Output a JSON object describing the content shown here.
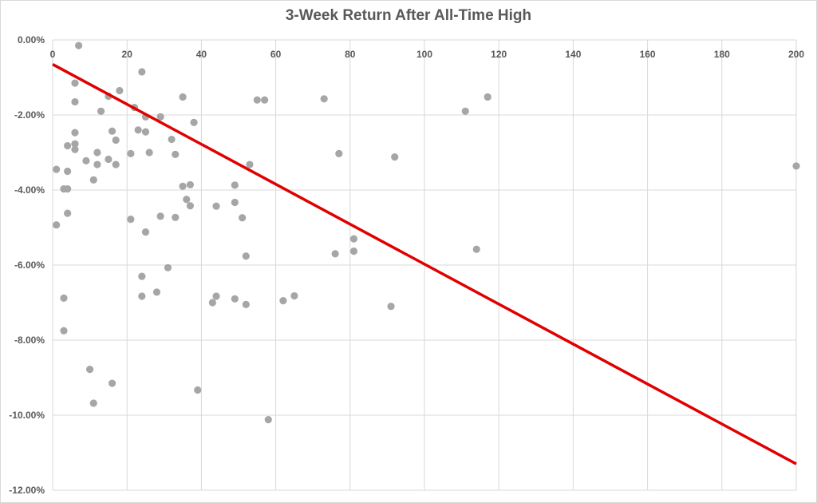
{
  "chart_data": {
    "type": "scatter",
    "title": "3-Week Return After All-Time High",
    "xlabel": "",
    "ylabel": "",
    "xlim": [
      0,
      200
    ],
    "ylim": [
      -12,
      0
    ],
    "x_ticks": [
      0,
      20,
      40,
      60,
      80,
      100,
      120,
      140,
      160,
      180,
      200
    ],
    "y_ticks": [
      0,
      -2,
      -4,
      -6,
      -8,
      -10,
      -12
    ],
    "y_tick_labels": [
      "0.00%",
      "-2.00%",
      "-4.00%",
      "-6.00%",
      "-8.00%",
      "-10.00%",
      "-12.00%"
    ],
    "x_axis_position": "top",
    "grid": true,
    "point_color": "#a6a6a6",
    "trend_color": "#e00000",
    "series": [
      {
        "points": [
          [
            7,
            -0.15
          ],
          [
            24,
            -0.85
          ],
          [
            6,
            -1.15
          ],
          [
            18,
            -1.35
          ],
          [
            15,
            -1.5
          ],
          [
            35,
            -1.52
          ],
          [
            6,
            -1.65
          ],
          [
            13,
            -1.9
          ],
          [
            22,
            -1.8
          ],
          [
            29,
            -2.05
          ],
          [
            25,
            -2.05
          ],
          [
            38,
            -2.2
          ],
          [
            16,
            -2.43
          ],
          [
            23,
            -2.4
          ],
          [
            25,
            -2.45
          ],
          [
            6,
            -2.47
          ],
          [
            17,
            -2.67
          ],
          [
            32,
            -2.65
          ],
          [
            4,
            -2.82
          ],
          [
            6,
            -2.77
          ],
          [
            6,
            -2.92
          ],
          [
            12,
            -3.0
          ],
          [
            21,
            -3.03
          ],
          [
            26,
            -3.0
          ],
          [
            33,
            -3.05
          ],
          [
            9,
            -3.22
          ],
          [
            15,
            -3.18
          ],
          [
            12,
            -3.32
          ],
          [
            17,
            -3.32
          ],
          [
            1,
            -3.45
          ],
          [
            4,
            -3.5
          ],
          [
            11,
            -3.73
          ],
          [
            3,
            -3.97
          ],
          [
            4,
            -3.97
          ],
          [
            35,
            -3.9
          ],
          [
            37,
            -3.86
          ],
          [
            36,
            -4.25
          ],
          [
            37,
            -4.42
          ],
          [
            4,
            -4.62
          ],
          [
            21,
            -4.78
          ],
          [
            29,
            -4.7
          ],
          [
            33,
            -4.73
          ],
          [
            1,
            -4.93
          ],
          [
            25,
            -5.12
          ],
          [
            31,
            -6.07
          ],
          [
            24,
            -6.3
          ],
          [
            3,
            -6.88
          ],
          [
            24,
            -6.83
          ],
          [
            28,
            -6.72
          ],
          [
            3,
            -7.75
          ],
          [
            10,
            -8.78
          ],
          [
            16,
            -9.15
          ],
          [
            11,
            -9.68
          ],
          [
            39,
            -9.33
          ],
          [
            44,
            -4.43
          ],
          [
            49,
            -3.87
          ],
          [
            49,
            -4.33
          ],
          [
            51,
            -4.74
          ],
          [
            53,
            -3.32
          ],
          [
            52,
            -5.76
          ],
          [
            43,
            -7.0
          ],
          [
            44,
            -6.83
          ],
          [
            49,
            -6.9
          ],
          [
            52,
            -7.05
          ],
          [
            58,
            -10.12
          ],
          [
            55,
            -1.6
          ],
          [
            57,
            -1.6
          ],
          [
            62,
            -6.95
          ],
          [
            65,
            -6.82
          ],
          [
            73,
            -1.57
          ],
          [
            77,
            -3.03
          ],
          [
            76,
            -5.7
          ],
          [
            81,
            -5.3
          ],
          [
            81,
            -5.63
          ],
          [
            92,
            -3.12
          ],
          [
            91,
            -7.1
          ],
          [
            111,
            -1.9
          ],
          [
            117,
            -1.52
          ],
          [
            114,
            -5.58
          ],
          [
            200,
            -3.36
          ]
        ]
      }
    ],
    "trendline": {
      "x": [
        0,
        200
      ],
      "y": [
        -0.65,
        -11.3
      ]
    }
  }
}
